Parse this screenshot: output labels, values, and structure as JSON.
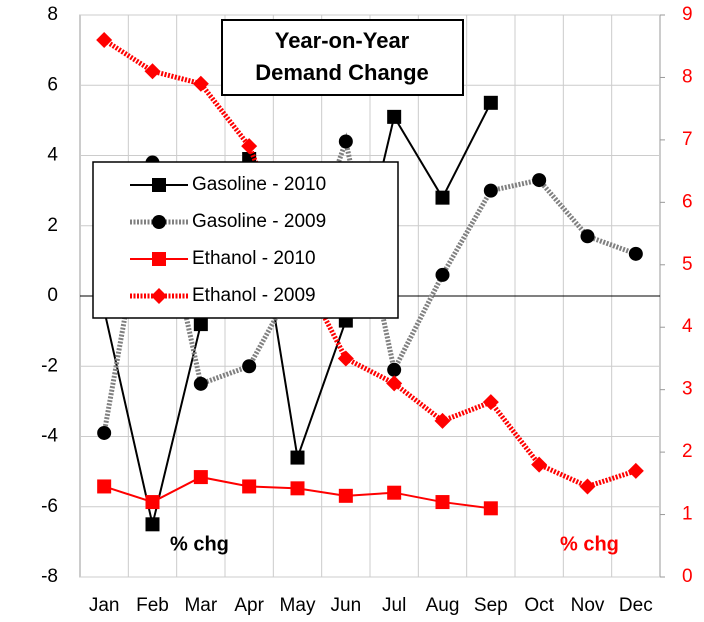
{
  "chart_data": {
    "type": "line",
    "title": "Year-on-Year Demand Change",
    "y_label": "% chg",
    "y2_label": "% chg",
    "categories": [
      "Jan",
      "Feb",
      "Mar",
      "Apr",
      "May",
      "Jun",
      "Jul",
      "Aug",
      "Sep",
      "Oct",
      "Nov",
      "Dec"
    ],
    "ylim": [
      -8,
      8
    ],
    "yticks": [
      -8,
      -6,
      -4,
      -2,
      0,
      2,
      4,
      6,
      8
    ],
    "y2lim": [
      0,
      9
    ],
    "y2ticks": [
      0,
      1,
      2,
      3,
      4,
      5,
      6,
      7,
      8,
      9
    ],
    "grid": true,
    "legend": "left",
    "series": [
      {
        "name": "Gasoline - 2010",
        "color": "#000000",
        "marker": "square",
        "style": "solid",
        "values": [
          -0.4,
          -6.5,
          -0.8,
          3.9,
          -4.6,
          -0.7,
          5.1,
          2.8,
          5.5,
          null,
          null,
          null
        ]
      },
      {
        "name": "Gasoline - 2009",
        "color": "#808080",
        "marker": "circle",
        "style": "dotted",
        "values": [
          -3.9,
          3.8,
          -2.5,
          -2.0,
          0.5,
          4.4,
          -2.1,
          0.6,
          3.0,
          3.3,
          1.7,
          1.2
        ]
      },
      {
        "name": "Ethanol - 2010",
        "color": "#ff0000",
        "marker": "square",
        "style": "solid",
        "axis": "y2",
        "values": [
          1.45,
          1.2,
          1.6,
          1.45,
          1.42,
          1.3,
          1.35,
          1.2,
          1.1,
          null,
          null,
          null
        ]
      },
      {
        "name": "Ethanol - 2009",
        "color": "#ff0000",
        "marker": "diamond",
        "style": "dotted",
        "axis": "y2",
        "values": [
          8.6,
          8.1,
          7.9,
          6.9,
          5.0,
          3.5,
          3.1,
          2.5,
          2.8,
          1.8,
          1.45,
          1.7
        ]
      }
    ]
  }
}
